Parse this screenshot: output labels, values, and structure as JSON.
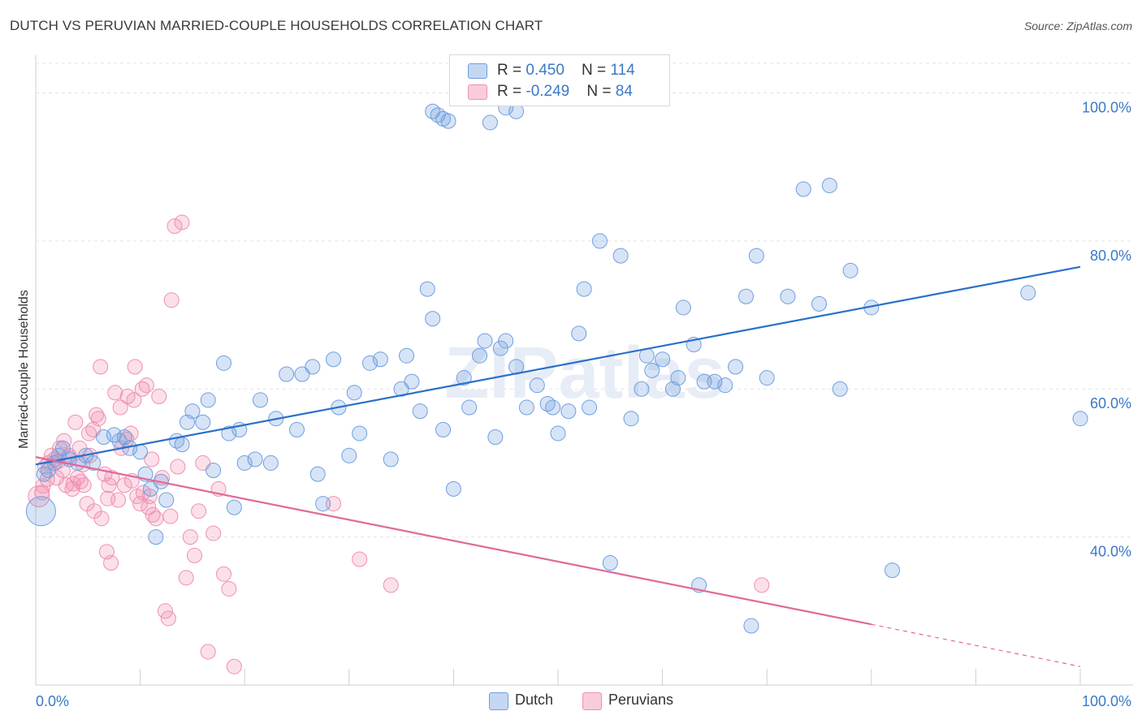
{
  "title": "DUTCH VS PERUVIAN MARRIED-COUPLE HOUSEHOLDS CORRELATION CHART",
  "source": "Source: ZipAtlas.com",
  "watermark": "ZIPatlas",
  "colors": {
    "dutch": "#6f9fe0",
    "dutch_line": "#2a70c9",
    "peruvians": "#f08fb0",
    "peruvians_line": "#e0689a",
    "axis_text": "#3a78c9"
  },
  "legend": {
    "dutch": {
      "r_label": "R = ",
      "r_value": "0.450",
      "n_label": "N = ",
      "n_value": "114"
    },
    "peruvians": {
      "r_label": "R = ",
      "r_value": "-0.249",
      "n_label": "N = ",
      "n_value": "84"
    }
  },
  "chart_data": {
    "type": "scatter",
    "title": "DUTCH VS PERUVIAN MARRIED-COUPLE HOUSEHOLDS CORRELATION CHART",
    "xlabel": "",
    "ylabel": "Married-couple Households",
    "xlim": [
      0,
      100
    ],
    "ylim": [
      20,
      104
    ],
    "x_tick_labels": [
      "0.0%",
      "100.0%"
    ],
    "y_ticks": [
      40,
      60,
      80,
      100
    ],
    "y_tick_labels": [
      "40.0%",
      "60.0%",
      "80.0%",
      "100.0%"
    ],
    "grid": true,
    "legend_position": "top-center",
    "series": [
      {
        "name": "Dutch",
        "color": "#6f9fe0",
        "trend": {
          "x": [
            0,
            100
          ],
          "y": [
            49.8,
            76.5
          ]
        },
        "points": [
          [
            0.5,
            43.5
          ],
          [
            0.8,
            48.5
          ],
          [
            1.2,
            49
          ],
          [
            1.8,
            50
          ],
          [
            2.2,
            51
          ],
          [
            2.6,
            52
          ],
          [
            3.2,
            50.5
          ],
          [
            4,
            50
          ],
          [
            4.8,
            51
          ],
          [
            5.5,
            50
          ],
          [
            6.5,
            53.5
          ],
          [
            7.5,
            53.8
          ],
          [
            8,
            53
          ],
          [
            8.5,
            53.5
          ],
          [
            9,
            52
          ],
          [
            10,
            51.5
          ],
          [
            10.5,
            48.5
          ],
          [
            11,
            46.5
          ],
          [
            11.5,
            40
          ],
          [
            12,
            47.5
          ],
          [
            12.5,
            45
          ],
          [
            13.5,
            53
          ],
          [
            14,
            52.5
          ],
          [
            14.5,
            55.5
          ],
          [
            15,
            57
          ],
          [
            16,
            55.5
          ],
          [
            16.5,
            58.5
          ],
          [
            17,
            49
          ],
          [
            18,
            63.5
          ],
          [
            18.5,
            54
          ],
          [
            19,
            44
          ],
          [
            19.5,
            54.5
          ],
          [
            20,
            50
          ],
          [
            21,
            50.5
          ],
          [
            21.5,
            58.5
          ],
          [
            22.5,
            50
          ],
          [
            23,
            56
          ],
          [
            24,
            62
          ],
          [
            25,
            54.5
          ],
          [
            25.5,
            62
          ],
          [
            26.5,
            63
          ],
          [
            27,
            48.5
          ],
          [
            27.5,
            44.5
          ],
          [
            28.5,
            64
          ],
          [
            29,
            57.5
          ],
          [
            30,
            51
          ],
          [
            30.5,
            59.5
          ],
          [
            31,
            54
          ],
          [
            32,
            63.5
          ],
          [
            33,
            64
          ],
          [
            34,
            50.5
          ],
          [
            35,
            60
          ],
          [
            35.5,
            64.5
          ],
          [
            36,
            61
          ],
          [
            36.8,
            57
          ],
          [
            37.5,
            73.5
          ],
          [
            38,
            69.5
          ],
          [
            39,
            54.5
          ],
          [
            40,
            46.5
          ],
          [
            41,
            61.5
          ],
          [
            41.5,
            57.5
          ],
          [
            42.5,
            64.5
          ],
          [
            43,
            66.5
          ],
          [
            44,
            53.5
          ],
          [
            44.5,
            65.5
          ],
          [
            45,
            66.5
          ],
          [
            46,
            63
          ],
          [
            47,
            57.5
          ],
          [
            48,
            60.5
          ],
          [
            49,
            58
          ],
          [
            49.5,
            57.5
          ],
          [
            50,
            54
          ],
          [
            51,
            57
          ],
          [
            52,
            67.5
          ],
          [
            52.5,
            73.5
          ],
          [
            53,
            57.5
          ],
          [
            54,
            80
          ],
          [
            55,
            36.5
          ],
          [
            56,
            78
          ],
          [
            57,
            56
          ],
          [
            58,
            60
          ],
          [
            58.5,
            64.5
          ],
          [
            59,
            62.5
          ],
          [
            60,
            64
          ],
          [
            61,
            60
          ],
          [
            61.5,
            61.5
          ],
          [
            62,
            71
          ],
          [
            63,
            66
          ],
          [
            63.5,
            33.5
          ],
          [
            64,
            61
          ],
          [
            65,
            61
          ],
          [
            66,
            60.5
          ],
          [
            67,
            63
          ],
          [
            68,
            72.5
          ],
          [
            68.5,
            28
          ],
          [
            69,
            78
          ],
          [
            70,
            61.5
          ],
          [
            72,
            72.5
          ],
          [
            73.5,
            87
          ],
          [
            75,
            71.5
          ],
          [
            76,
            87.5
          ],
          [
            77,
            60
          ],
          [
            78,
            76
          ],
          [
            80,
            71
          ],
          [
            82,
            35.5
          ],
          [
            95,
            73
          ],
          [
            100,
            56
          ],
          [
            38.5,
            97
          ],
          [
            39,
            96.5
          ],
          [
            38,
            97.5
          ],
          [
            43.5,
            96
          ],
          [
            46,
            97.5
          ],
          [
            45,
            98
          ],
          [
            39.5,
            96.2
          ]
        ]
      },
      {
        "name": "Peruvians",
        "color": "#f08fb0",
        "trend": {
          "x": [
            0,
            80
          ],
          "y": [
            50.8,
            28.2
          ]
        },
        "trend_dashed": {
          "x": [
            80,
            100
          ],
          "y": [
            28.2,
            22.5
          ]
        },
        "points": [
          [
            0.3,
            45.5
          ],
          [
            0.6,
            46
          ],
          [
            0.9,
            49.5
          ],
          [
            1.2,
            50
          ],
          [
            1.5,
            51
          ],
          [
            1.8,
            50.5
          ],
          [
            2,
            48
          ],
          [
            2.3,
            52
          ],
          [
            2.6,
            49
          ],
          [
            2.9,
            47
          ],
          [
            3.2,
            51
          ],
          [
            3.5,
            46.5
          ],
          [
            3.8,
            55.5
          ],
          [
            4,
            48
          ],
          [
            4.3,
            47.5
          ],
          [
            4.6,
            47
          ],
          [
            4.9,
            44.5
          ],
          [
            5.2,
            51
          ],
          [
            5.5,
            54.5
          ],
          [
            5.8,
            56.5
          ],
          [
            6,
            56
          ],
          [
            6.3,
            42.5
          ],
          [
            6.6,
            48.5
          ],
          [
            7,
            47
          ],
          [
            7.3,
            48
          ],
          [
            7.6,
            59.5
          ],
          [
            7.9,
            45
          ],
          [
            8.2,
            52
          ],
          [
            8.5,
            47
          ],
          [
            8.8,
            59
          ],
          [
            9.1,
            54
          ],
          [
            9.4,
            58.5
          ],
          [
            9.7,
            45.5
          ],
          [
            10,
            44.5
          ],
          [
            10.3,
            46
          ],
          [
            10.6,
            60.5
          ],
          [
            10.9,
            45.5
          ],
          [
            11.2,
            43
          ],
          [
            11.5,
            42.5
          ],
          [
            11.8,
            59
          ],
          [
            12.1,
            48
          ],
          [
            12.4,
            30
          ],
          [
            12.7,
            29
          ],
          [
            13,
            72
          ],
          [
            13.3,
            82
          ],
          [
            13.6,
            49.5
          ],
          [
            14,
            82.5
          ],
          [
            14.4,
            34.5
          ],
          [
            14.8,
            40
          ],
          [
            15.2,
            37.5
          ],
          [
            15.6,
            43.5
          ],
          [
            16,
            50
          ],
          [
            16.5,
            24.5
          ],
          [
            17,
            40.5
          ],
          [
            17.5,
            46.5
          ],
          [
            18,
            35
          ],
          [
            18.5,
            33
          ],
          [
            19,
            22.5
          ],
          [
            2.1,
            50.2
          ],
          [
            3.1,
            50.8
          ],
          [
            4.2,
            52
          ],
          [
            5.1,
            54
          ],
          [
            6.2,
            63
          ],
          [
            6.8,
            38
          ],
          [
            7.2,
            36.5
          ],
          [
            8.1,
            57.5
          ],
          [
            9.5,
            63
          ],
          [
            10.2,
            60
          ],
          [
            11.1,
            50.5
          ],
          [
            2.7,
            53
          ],
          [
            3.6,
            47.2
          ],
          [
            1.1,
            47.8
          ],
          [
            0.7,
            46.9
          ],
          [
            4.5,
            49.8
          ],
          [
            5.6,
            43.5
          ],
          [
            6.9,
            45.2
          ],
          [
            8.7,
            53.2
          ],
          [
            9.2,
            47.6
          ],
          [
            10.8,
            44
          ],
          [
            12.9,
            42.8
          ],
          [
            28.5,
            44.5
          ],
          [
            31,
            37
          ],
          [
            34,
            33.5
          ],
          [
            69.5,
            33.5
          ]
        ]
      }
    ]
  },
  "bottom_legend": {
    "dutch": "Dutch",
    "peruvians": "Peruvians"
  }
}
